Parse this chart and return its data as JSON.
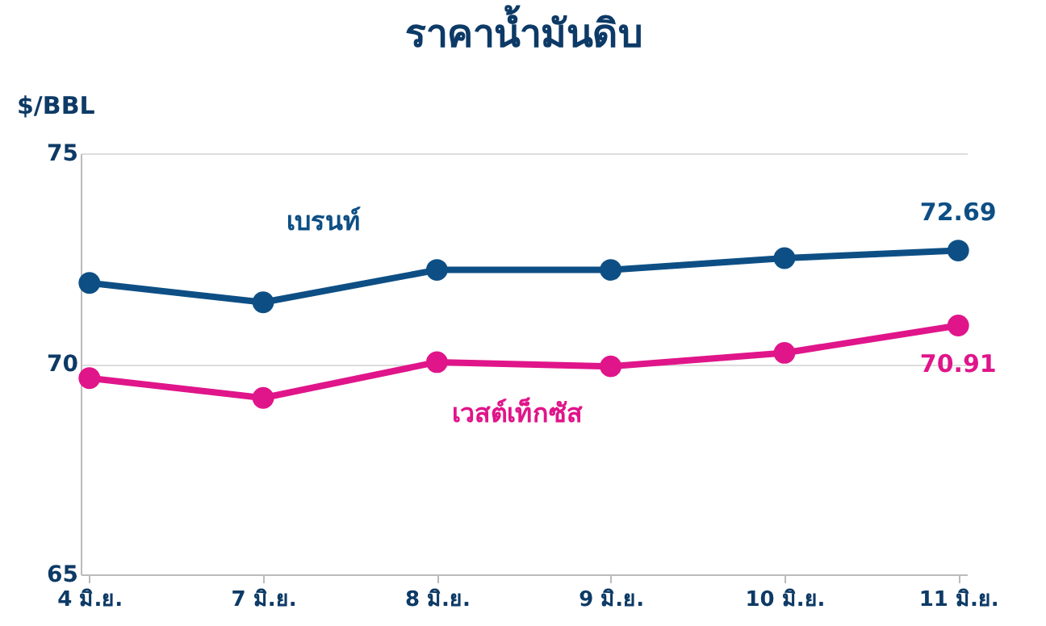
{
  "chart_data": {
    "type": "line",
    "title": "ราคาน้ำมันดิบ",
    "ylabel": "$/BBL",
    "categories": [
      "4 มิ.ย.",
      "7 มิ.ย.",
      "8 มิ.ย.",
      "9 มิ.ย.",
      "10 มิ.ย.",
      "11 มิ.ย."
    ],
    "series": [
      {
        "name": "เบรนท์",
        "color": "#0d4f85",
        "values": [
          71.92,
          71.46,
          72.23,
          72.23,
          72.51,
          72.69
        ],
        "value_labels": [
          null,
          null,
          null,
          null,
          null,
          "72.69"
        ]
      },
      {
        "name": "เวสต์เท็กซัส",
        "color": "#e0158a",
        "values": [
          69.66,
          69.19,
          70.04,
          69.94,
          70.26,
          70.91
        ],
        "value_labels": [
          null,
          null,
          null,
          null,
          null,
          "70.91"
        ]
      }
    ],
    "ylim": [
      65,
      75
    ],
    "yticks": [
      65,
      70,
      75
    ],
    "grid": "y",
    "marker": "circle",
    "line_style": "solid"
  }
}
